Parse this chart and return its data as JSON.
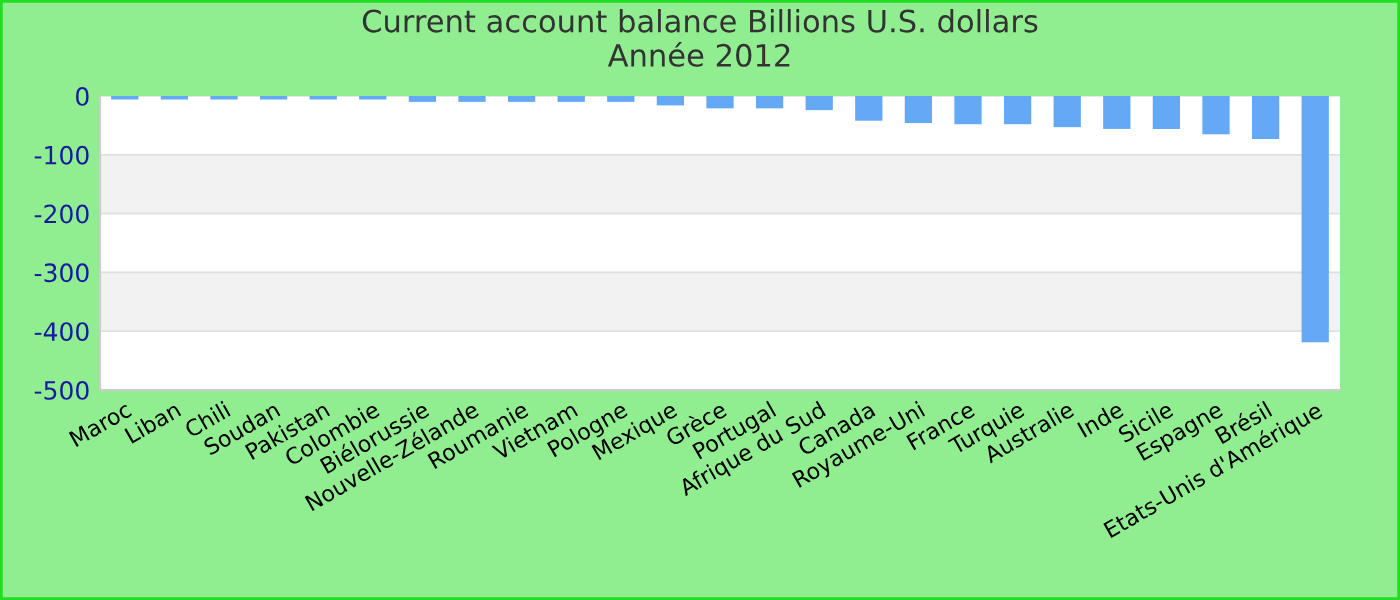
{
  "chart_data": {
    "type": "bar",
    "title": "Current account balance Billions U.S. dollars\nAnnée 2012",
    "categories": [
      "Maroc",
      "Liban",
      "Chili",
      "Soudan",
      "Pakistan",
      "Colombie",
      "Biélorussie",
      "Nouvelle-Zélande",
      "Roumanie",
      "Vietnam",
      "Pologne",
      "Mexique",
      "Grèce",
      "Portugal",
      "Afrique du Sud",
      "Canada",
      "Royaume-Uni",
      "France",
      "Turquie",
      "Australie",
      "Inde",
      "Sicile",
      "Espagne",
      "Brésil",
      "Etats-Unis d'Amérique"
    ],
    "values": [
      -6,
      -6,
      -6,
      -6,
      -6,
      -6,
      -10,
      -10,
      -10,
      -10,
      -10,
      -16,
      -21,
      -21,
      -24,
      -42,
      -46,
      -48,
      -48,
      -53,
      -56,
      -56,
      -65,
      -73,
      -419
    ],
    "color": "#63a9f5",
    "ylim": [
      -500,
      0
    ],
    "yticks": [
      -500,
      -400,
      -300,
      -200,
      -100,
      0
    ],
    "grid": "y",
    "legend": false
  }
}
